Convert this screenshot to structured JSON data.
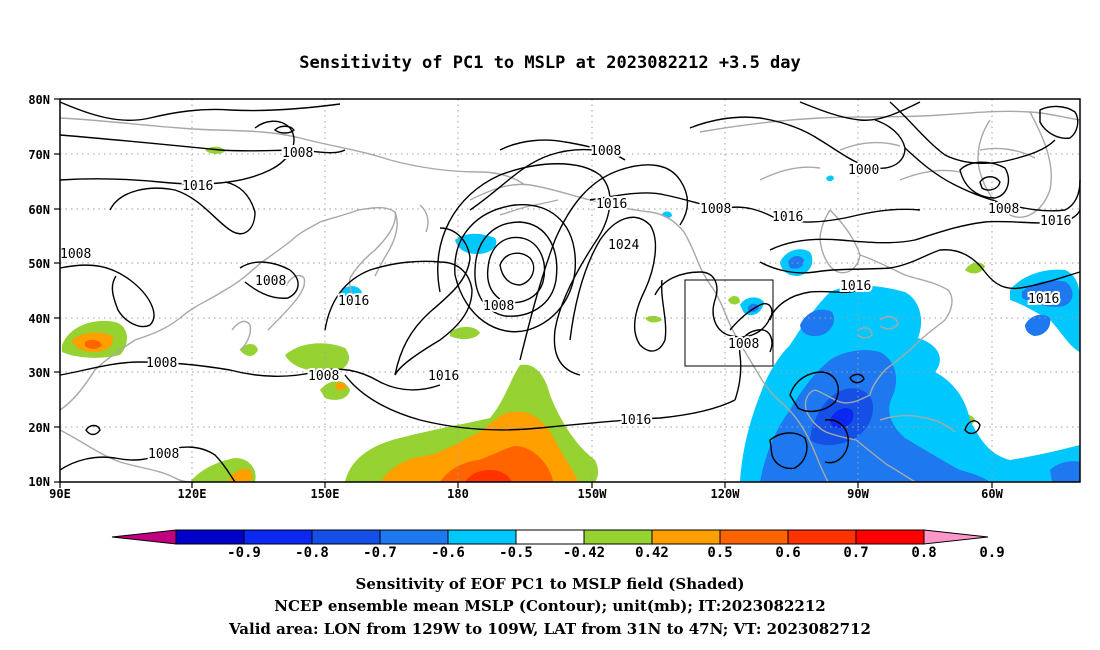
{
  "title": "Sensitivity of PC1 to MSLP at 2023082212 +3.5 day",
  "lat_labels": [
    "80N",
    "70N",
    "60N",
    "50N",
    "40N",
    "30N",
    "20N",
    "10N"
  ],
  "lon_labels": [
    "90E",
    "120E",
    "150E",
    "180",
    "150W",
    "120W",
    "90W",
    "60W"
  ],
  "contour_labels": [
    "1008",
    "1008",
    "1016",
    "1008",
    "1016",
    "1008",
    "1008",
    "1016",
    "1024",
    "1008",
    "1016",
    "1008",
    "1016",
    "1000",
    "1008",
    "1016",
    "1016",
    "1016",
    "1008",
    "1008"
  ],
  "colorbar": {
    "labels": [
      "-0.9",
      "-0.8",
      "-0.7",
      "-0.6",
      "-0.5",
      "-0.42",
      "0.42",
      "0.5",
      "0.6",
      "0.7",
      "0.8",
      "0.9"
    ],
    "colors": [
      "#c0007f",
      "#0000c8",
      "#0a28f0",
      "#1450e6",
      "#1e78f0",
      "#00c8ff",
      "#ffffff",
      "#96d232",
      "#ffa000",
      "#ff6400",
      "#ff3200",
      "#ff0000",
      "#ff96c8"
    ]
  },
  "footer": {
    "line1": "Sensitivity of EOF PC1 to MSLP field (Shaded)",
    "line2": "NCEP ensemble mean MSLP (Contour); unit(mb); IT:2023082212",
    "line3": "Valid area: LON from 129W to 109W, LAT from 31N to 47N; VT: 2023082712"
  }
}
